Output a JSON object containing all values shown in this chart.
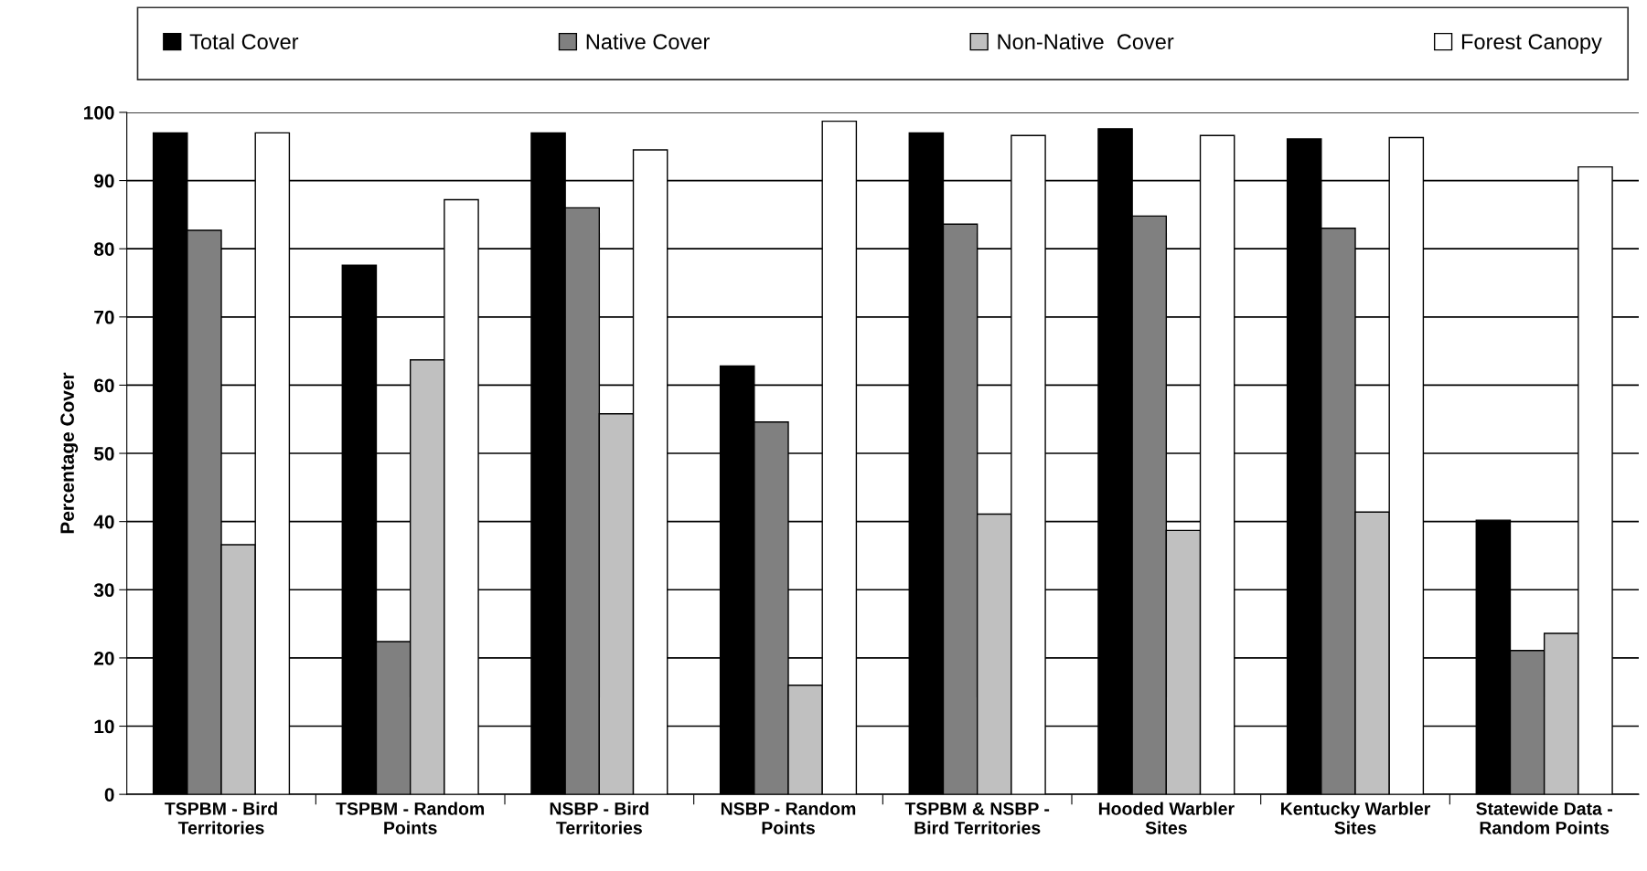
{
  "chart_data": {
    "type": "bar",
    "ylabel": "Percentage Cover",
    "categories": [
      "TSPBM - Bird\nTerritories",
      "TSPBM - Random\nPoints",
      "NSBP - Bird\nTerritories",
      "NSBP - Random\nPoints",
      "TSPBM & NSBP -\nBird Territories",
      "Hooded Warbler\nSites",
      "Kentucky Warbler\nSites",
      "Statewide Data -\nRandom Points"
    ],
    "series": [
      {
        "name": "Total Cover",
        "color": "#000000",
        "values": [
          97,
          77.6,
          97,
          62.8,
          97,
          97.6,
          96.1,
          40.2
        ]
      },
      {
        "name": "Native Cover",
        "color": "#808080",
        "values": [
          82.7,
          22.4,
          86,
          54.6,
          83.6,
          84.8,
          83,
          21.1
        ]
      },
      {
        "name": "Non-Native  Cover",
        "color": "#c0c0c0",
        "values": [
          36.6,
          63.7,
          55.8,
          16,
          41.1,
          38.7,
          41.4,
          23.6
        ]
      },
      {
        "name": "Forest Canopy",
        "color": "#ffffff",
        "values": [
          97,
          87.2,
          94.5,
          98.7,
          96.6,
          96.6,
          96.3,
          92
        ]
      }
    ],
    "ylim": [
      0,
      100
    ],
    "yticks": [
      0,
      10,
      20,
      30,
      40,
      50,
      60,
      70,
      80,
      90,
      100
    ],
    "grid": "y",
    "legend": "top"
  }
}
